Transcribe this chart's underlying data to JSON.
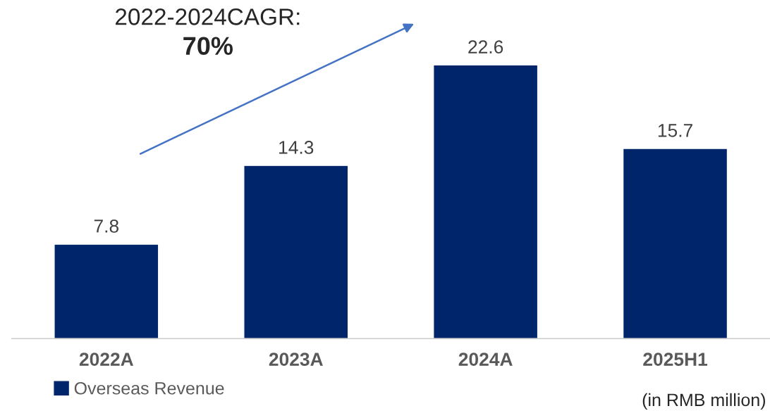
{
  "chart_data": {
    "type": "bar",
    "categories": [
      "2022A",
      "2023A",
      "2024A",
      "2025H1"
    ],
    "series": [
      {
        "name": "Overseas Revenue",
        "color": "#00256b",
        "values": [
          7.8,
          14.3,
          22.6,
          15.7
        ]
      }
    ],
    "data_labels": true,
    "legend": "bottom left",
    "grid": false,
    "annotations": [
      "2022-2024CAGR:",
      "70%",
      "(in RMB million)"
    ]
  }
}
